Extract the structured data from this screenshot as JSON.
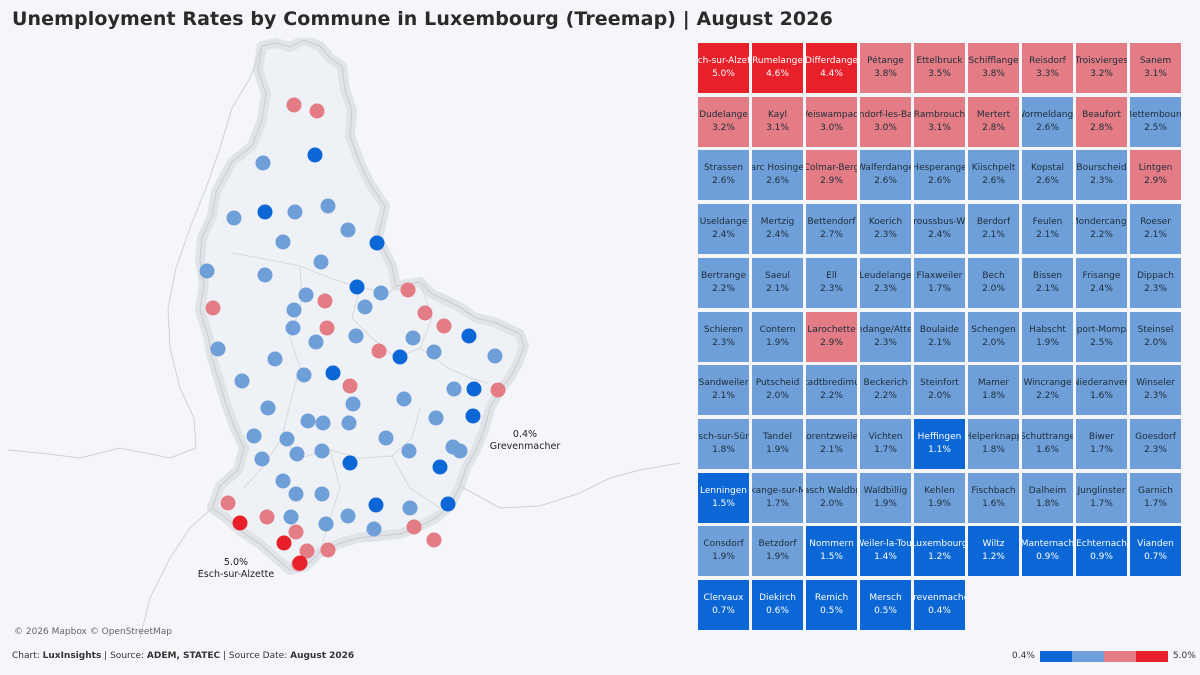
{
  "title": "Unemployment Rates by Commune in Luxembourg (Treemap) | August 2026",
  "map": {
    "attribution": "© 2026 Mapbox © OpenStreetMap",
    "callout_max": {
      "value": "5.0%",
      "name": "Esch-sur-Alzette"
    },
    "callout_min": {
      "value": "0.4%",
      "name": "Grevenmacher"
    },
    "colors": {
      "high": "#e8202a",
      "mid_high": "#e37c84",
      "mid_low": "#6f9fd8",
      "low": "#0b66d6"
    }
  },
  "footer": {
    "chart_label": "Chart:",
    "chart_value": "LuxInsights",
    "source_label": "Source:",
    "source_value": "ADEM, STATEC",
    "date_label": "Source Date:",
    "date_value": "August 2026",
    "sep": "|"
  },
  "legend": {
    "min": "0.4%",
    "max": "5.0%",
    "colors": [
      "#0b66d6",
      "#6f9fd8",
      "#e37c84",
      "#e8202a"
    ]
  },
  "chart_data": {
    "type": "treemap",
    "unit": "%",
    "items": [
      {
        "name": "Esch-sur-Alzette",
        "value": "5.0%",
        "color": "#e8202a"
      },
      {
        "name": "Rumelange",
        "value": "4.6%",
        "color": "#e8202a"
      },
      {
        "name": "Differdange",
        "value": "4.4%",
        "color": "#e8202a"
      },
      {
        "name": "Pétange",
        "value": "3.8%",
        "color": "#e37c84"
      },
      {
        "name": "Ettelbruck",
        "value": "3.5%",
        "color": "#e37c84"
      },
      {
        "name": "Schifflange",
        "value": "3.8%",
        "color": "#e37c84"
      },
      {
        "name": "Reisdorf",
        "value": "3.3%",
        "color": "#e37c84"
      },
      {
        "name": "Troisvierges",
        "value": "3.2%",
        "color": "#e37c84"
      },
      {
        "name": "Sanem",
        "value": "3.1%",
        "color": "#e37c84"
      },
      {
        "name": "Dudelange",
        "value": "3.2%",
        "color": "#e37c84"
      },
      {
        "name": "Kayl",
        "value": "3.1%",
        "color": "#e37c84"
      },
      {
        "name": "Weiswampach",
        "value": "3.0%",
        "color": "#e37c84"
      },
      {
        "name": "Mondorf-les-Bains",
        "value": "3.0%",
        "color": "#e37c84"
      },
      {
        "name": "Rambrouch",
        "value": "3.1%",
        "color": "#e37c84"
      },
      {
        "name": "Mertert",
        "value": "2.8%",
        "color": "#e37c84"
      },
      {
        "name": "Wormeldange",
        "value": "2.6%",
        "color": "#6f9fd8"
      },
      {
        "name": "Beaufort",
        "value": "2.8%",
        "color": "#e37c84"
      },
      {
        "name": "Bettembourg",
        "value": "2.5%",
        "color": "#6f9fd8"
      },
      {
        "name": "Strassen",
        "value": "2.6%",
        "color": "#6f9fd8"
      },
      {
        "name": "Parc Hosingen",
        "value": "2.6%",
        "color": "#6f9fd8"
      },
      {
        "name": "Colmar-Berg",
        "value": "2.9%",
        "color": "#e37c84"
      },
      {
        "name": "Walferdange",
        "value": "2.6%",
        "color": "#6f9fd8"
      },
      {
        "name": "Hesperange",
        "value": "2.6%",
        "color": "#6f9fd8"
      },
      {
        "name": "Kiischpelt",
        "value": "2.6%",
        "color": "#6f9fd8"
      },
      {
        "name": "Kopstal",
        "value": "2.6%",
        "color": "#6f9fd8"
      },
      {
        "name": "Bourscheid",
        "value": "2.3%",
        "color": "#6f9fd8"
      },
      {
        "name": "Lintgen",
        "value": "2.9%",
        "color": "#e37c84"
      },
      {
        "name": "Useldange",
        "value": "2.4%",
        "color": "#6f9fd8"
      },
      {
        "name": "Mertzig",
        "value": "2.4%",
        "color": "#6f9fd8"
      },
      {
        "name": "Bettendorf",
        "value": "2.7%",
        "color": "#6f9fd8"
      },
      {
        "name": "Koerich",
        "value": "2.3%",
        "color": "#6f9fd8"
      },
      {
        "name": "Groussbus-Wal",
        "value": "2.4%",
        "color": "#6f9fd8"
      },
      {
        "name": "Berdorf",
        "value": "2.1%",
        "color": "#6f9fd8"
      },
      {
        "name": "Feulen",
        "value": "2.1%",
        "color": "#6f9fd8"
      },
      {
        "name": "Mondercange",
        "value": "2.2%",
        "color": "#6f9fd8"
      },
      {
        "name": "Roeser",
        "value": "2.1%",
        "color": "#6f9fd8"
      },
      {
        "name": "Bertrange",
        "value": "2.2%",
        "color": "#6f9fd8"
      },
      {
        "name": "Saeul",
        "value": "2.1%",
        "color": "#6f9fd8"
      },
      {
        "name": "Ell",
        "value": "2.3%",
        "color": "#6f9fd8"
      },
      {
        "name": "Leudelange",
        "value": "2.3%",
        "color": "#6f9fd8"
      },
      {
        "name": "Flaxweiler",
        "value": "1.7%",
        "color": "#6f9fd8"
      },
      {
        "name": "Bech",
        "value": "2.0%",
        "color": "#6f9fd8"
      },
      {
        "name": "Bissen",
        "value": "2.1%",
        "color": "#6f9fd8"
      },
      {
        "name": "Frisange",
        "value": "2.4%",
        "color": "#6f9fd8"
      },
      {
        "name": "Dippach",
        "value": "2.3%",
        "color": "#6f9fd8"
      },
      {
        "name": "Schieren",
        "value": "2.3%",
        "color": "#6f9fd8"
      },
      {
        "name": "Contern",
        "value": "1.9%",
        "color": "#6f9fd8"
      },
      {
        "name": "Larochette",
        "value": "2.9%",
        "color": "#e37c84"
      },
      {
        "name": "Redange/Attert",
        "value": "2.3%",
        "color": "#6f9fd8"
      },
      {
        "name": "Boulaide",
        "value": "2.1%",
        "color": "#6f9fd8"
      },
      {
        "name": "Schengen",
        "value": "2.0%",
        "color": "#6f9fd8"
      },
      {
        "name": "Habscht",
        "value": "1.9%",
        "color": "#6f9fd8"
      },
      {
        "name": "Rosport-Mompach",
        "value": "2.5%",
        "color": "#6f9fd8"
      },
      {
        "name": "Steinsel",
        "value": "2.0%",
        "color": "#6f9fd8"
      },
      {
        "name": "Sandweiler",
        "value": "2.1%",
        "color": "#6f9fd8"
      },
      {
        "name": "Putscheid",
        "value": "2.0%",
        "color": "#6f9fd8"
      },
      {
        "name": "Stadtbredimus",
        "value": "2.2%",
        "color": "#6f9fd8"
      },
      {
        "name": "Beckerich",
        "value": "2.2%",
        "color": "#6f9fd8"
      },
      {
        "name": "Steinfort",
        "value": "2.0%",
        "color": "#6f9fd8"
      },
      {
        "name": "Mamer",
        "value": "1.8%",
        "color": "#6f9fd8"
      },
      {
        "name": "Wincrange",
        "value": "2.2%",
        "color": "#6f9fd8"
      },
      {
        "name": "Niederanven",
        "value": "1.6%",
        "color": "#6f9fd8"
      },
      {
        "name": "Winseler",
        "value": "2.3%",
        "color": "#6f9fd8"
      },
      {
        "name": "Esch-sur-Sûre",
        "value": "1.8%",
        "color": "#6f9fd8"
      },
      {
        "name": "Tandel",
        "value": "1.9%",
        "color": "#6f9fd8"
      },
      {
        "name": "Lorentzweiler",
        "value": "2.1%",
        "color": "#6f9fd8"
      },
      {
        "name": "Vichten",
        "value": "1.7%",
        "color": "#6f9fd8"
      },
      {
        "name": "Heffingen",
        "value": "1.1%",
        "color": "#0b66d6"
      },
      {
        "name": "Helperknapp",
        "value": "1.8%",
        "color": "#6f9fd8"
      },
      {
        "name": "Schuttrange",
        "value": "1.6%",
        "color": "#6f9fd8"
      },
      {
        "name": "Biwer",
        "value": "1.7%",
        "color": "#6f9fd8"
      },
      {
        "name": "Goesdorf",
        "value": "2.3%",
        "color": "#6f9fd8"
      },
      {
        "name": "Lenningen",
        "value": "1.5%",
        "color": "#0b66d6"
      },
      {
        "name": "Reckange-sur-Mess",
        "value": "1.7%",
        "color": "#6f9fd8"
      },
      {
        "name": "Aeschbasch Waldbredimus",
        "value": "2.0%",
        "color": "#6f9fd8"
      },
      {
        "name": "Waldbillig",
        "value": "1.9%",
        "color": "#6f9fd8"
      },
      {
        "name": "Kehlen",
        "value": "1.9%",
        "color": "#6f9fd8"
      },
      {
        "name": "Fischbach",
        "value": "1.6%",
        "color": "#6f9fd8"
      },
      {
        "name": "Dalheim",
        "value": "1.8%",
        "color": "#6f9fd8"
      },
      {
        "name": "Junglinster",
        "value": "1.7%",
        "color": "#6f9fd8"
      },
      {
        "name": "Garnich",
        "value": "1.7%",
        "color": "#6f9fd8"
      },
      {
        "name": "Consdorf",
        "value": "1.9%",
        "color": "#6f9fd8"
      },
      {
        "name": "Betzdorf",
        "value": "1.9%",
        "color": "#6f9fd8"
      },
      {
        "name": "Nommern",
        "value": "1.5%",
        "color": "#0b66d6"
      },
      {
        "name": "Weiler-la-Tour",
        "value": "1.4%",
        "color": "#0b66d6"
      },
      {
        "name": "Luxembourg",
        "value": "1.2%",
        "color": "#0b66d6"
      },
      {
        "name": "Wiltz",
        "value": "1.2%",
        "color": "#0b66d6"
      },
      {
        "name": "Manternach",
        "value": "0.9%",
        "color": "#0b66d6"
      },
      {
        "name": "Echternach",
        "value": "0.9%",
        "color": "#0b66d6"
      },
      {
        "name": "Vianden",
        "value": "0.7%",
        "color": "#0b66d6"
      },
      {
        "name": "Clervaux",
        "value": "0.7%",
        "color": "#0b66d6"
      },
      {
        "name": "Diekirch",
        "value": "0.6%",
        "color": "#0b66d6"
      },
      {
        "name": "Remich",
        "value": "0.5%",
        "color": "#0b66d6"
      },
      {
        "name": "Mersch",
        "value": "0.5%",
        "color": "#0b66d6"
      },
      {
        "name": "Grevenmacher",
        "value": "0.4%",
        "color": "#0b66d6"
      }
    ]
  }
}
